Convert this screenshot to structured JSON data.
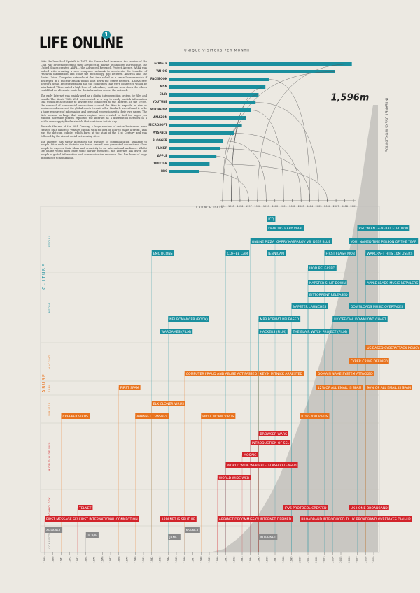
{
  "header": {
    "title": "LIFE ONLINE",
    "badge": "1"
  },
  "intro": [
    "With the launch of Sputnik in 1957, the Soviets had increased the tension of the Cold War by demonstrating their advances in missile technology. In response, the United States created ARPA – the Advanced Research Project Agency. ARPA was tasked with creating a new computer network to accelerate the transfer of research information and close the technology gap between America and the Soviet Union. Computer networks at that time relied on a central server which if destroyed in a nuclear attack would shut down the entire network. ARPA's new network would be decentralised and the computers that were connected would be interlinked. This created a high level of redundancy so if one went down the others could find an alternate route for the information across the network.",
    "The early Internet was mainly used as a digital interoperation system for files and emails. The World Wide Web was created as a way to easily publish information that would be accessible to anyone else connected to the Internet. In the 1990s, the removal of commercial restrictions caused the Web to explode in size as businesses discovered the global reach it could offer. Similarly users found it to be a huge resource of information and personal expression with their own pages. The Web became so large that search engines were created to find the pages you wanted. Software pirates exploited the Internet as a distribution network in a battle over copyrighted materials that continues to this day.",
    "Towards the end of the 20th Century, a large number of online businesses were created on a range of venture capital with no idea of how to make a profit. This was the dot-com bubble, which burst at the start of the 21st Century and was followed by the rise of social networking sites.",
    "The Internet has vastly increased the avenues of communication available to people. Sites such as Youtube are based around user generated content and allow people to express their ideas and creativity to an international audience. Whilst the online world does have some darker elements, the Internet has given the people a global information and communication resource that has been of huge importance to humankind."
  ],
  "visitors": {
    "title": "UNIQUE VISITORS PER MONTH",
    "axis_label": "LAUNCH DATE",
    "color": "#1a8f9e",
    "categories": [
      "GOOGLE",
      "YAHOO",
      "FACEBOOK",
      "MSN",
      "EBAY",
      "YOUTUBE",
      "WIKIPEDIA",
      "AMAZON",
      "MICROSOFT",
      "MYSPACE",
      "BLOGGER",
      "FLICKR",
      "APPLE",
      "TWITTER",
      "BBC"
    ],
    "values": [
      931,
      844,
      507,
      490,
      455,
      440,
      415,
      390,
      370,
      330,
      275,
      260,
      240,
      205,
      152
    ],
    "launch": [
      1998,
      1994,
      2004,
      1995,
      1995,
      2005,
      2001,
      1995,
      1994,
      2003,
      1999,
      2004,
      1996,
      2006,
      1997
    ],
    "xlim": [
      0,
      1000
    ],
    "launch_ticks": [
      1994,
      1995,
      1996,
      1997,
      1998,
      1999,
      2000,
      2001,
      2002,
      2003,
      2004,
      2005,
      2006,
      2007,
      2008,
      2009
    ]
  },
  "users": {
    "value": "1,596m",
    "label": "INTERNET USERS WORLDWIDE"
  },
  "timeline": {
    "groups": [
      {
        "name": "CULTURE",
        "color": "#1a8f9e"
      },
      {
        "name": "ABUSE",
        "color": "#e8731e"
      }
    ],
    "lanes": [
      {
        "name": "SOCIAL",
        "color": "#1a8f9e"
      },
      {
        "name": "MEDIA",
        "color": "#1a8f9e"
      },
      {
        "name": "HACKING",
        "color": "#e8731e"
      },
      {
        "name": "SPAM",
        "color": "#e8731e"
      },
      {
        "name": "VIRUSES",
        "color": "#e8731e"
      },
      {
        "name": "WORLD WIDE WEB",
        "color": "#d2232a"
      },
      {
        "name": "TECHNOLOGY",
        "color": "#d2232a"
      },
      {
        "name": "CONNECTIONS",
        "color": "#8a8a8a"
      }
    ],
    "years": [
      1969,
      1970,
      1971,
      1972,
      1973,
      1974,
      1975,
      1976,
      1977,
      1978,
      1979,
      1980,
      1981,
      1982,
      1983,
      1984,
      1985,
      1986,
      1987,
      1988,
      1989,
      1990,
      1991,
      1992,
      1993,
      1994,
      1995,
      1996,
      1997,
      1998,
      1999,
      2000,
      2001,
      2002,
      2003,
      2004,
      2005,
      2006,
      2007,
      2008,
      2009
    ],
    "events": [
      {
        "label": "ICQ",
        "year": 1996,
        "lane": 0
      },
      {
        "label": "DANCING BABY VIRAL",
        "year": 1996,
        "lane": 0
      },
      {
        "label": "ESTONIAN GENERAL ELECTION",
        "year": 2007,
        "lane": 0
      },
      {
        "label": "ONLINE PIZZA",
        "year": 1994,
        "lane": 0
      },
      {
        "label": "GARRY KASPAROV VS. DEEP BLUE",
        "year": 1997,
        "lane": 0
      },
      {
        "label": "YOU! NAMED TIME PERSON OF THE YEAR",
        "year": 2006,
        "lane": 0
      },
      {
        "label": "EMOTICONS",
        "year": 1982,
        "lane": 0
      },
      {
        "label": "COFFEE CAM",
        "year": 1991,
        "lane": 0
      },
      {
        "label": "JENNICAM",
        "year": 1996,
        "lane": 0
      },
      {
        "label": "FIRST FLASH MOB",
        "year": 2003,
        "lane": 0
      },
      {
        "label": "WARCRAFT HITS 10M USERS",
        "year": 2008,
        "lane": 0
      },
      {
        "label": "IPOD RELEASED",
        "year": 2001,
        "lane": 1
      },
      {
        "label": "NAPSTER SHUT DOWN",
        "year": 2001,
        "lane": 1
      },
      {
        "label": "APPLE LEADS MUSIC RETAILERS",
        "year": 2008,
        "lane": 1
      },
      {
        "label": "BITTORRENT RELEASED",
        "year": 2001,
        "lane": 1
      },
      {
        "label": "NAPSTER LAUNCHES",
        "year": 1999,
        "lane": 1
      },
      {
        "label": "DOWNLOADS MUSIC OVERTAKES",
        "year": 2006,
        "lane": 1
      },
      {
        "label": "NEUROMANCER (BOOK)",
        "year": 1984,
        "lane": 1
      },
      {
        "label": "MP3 FORMAT RELEASED",
        "year": 1995,
        "lane": 1
      },
      {
        "label": "UK OFFICIAL DOWNLOAD CHART",
        "year": 2004,
        "lane": 1
      },
      {
        "label": "WARGAMES (FILM)",
        "year": 1983,
        "lane": 1
      },
      {
        "label": "HACKERS (FILM)",
        "year": 1995,
        "lane": 1
      },
      {
        "label": "THE BLAIR WITCH PROJECT (FILM)",
        "year": 1999,
        "lane": 1
      },
      {
        "label": "US-BASED CYBERATTACK POLICY",
        "year": 2008,
        "lane": 2
      },
      {
        "label": "CYBER CRIME DEFINED",
        "year": 2006,
        "lane": 2
      },
      {
        "label": "COMPUTER FRAUD AND ABUSE ACT PASSED",
        "year": 1986,
        "lane": 2
      },
      {
        "label": "KEVIN MITNICK ARRESTED",
        "year": 1995,
        "lane": 2
      },
      {
        "label": "DOMAIN NAME SYSTEM ATTACKED",
        "year": 2002,
        "lane": 2
      },
      {
        "label": "FIRST SPAM",
        "year": 1978,
        "lane": 3
      },
      {
        "label": "12% OF ALL EMAIL IS SPAM",
        "year": 2002,
        "lane": 3
      },
      {
        "label": "90% OF ALL EMAIL IS SPAM",
        "year": 2008,
        "lane": 3
      },
      {
        "label": "ELK CLONER VIRUS",
        "year": 1982,
        "lane": 4
      },
      {
        "label": "CREEPER VIRUS",
        "year": 1971,
        "lane": 4
      },
      {
        "label": "ARPANET CRASHES",
        "year": 1980,
        "lane": 4
      },
      {
        "label": "FIRST WORM VIRUS",
        "year": 1988,
        "lane": 4
      },
      {
        "label": "ILOVEYOU VIRUS",
        "year": 2000,
        "lane": 4
      },
      {
        "label": "BROWSER WARS",
        "year": 1995,
        "lane": 5
      },
      {
        "label": "INTRODUCTION OF SSL",
        "year": 1994,
        "lane": 5
      },
      {
        "label": "MOSAIC",
        "year": 1993,
        "lane": 5
      },
      {
        "label": "WORLD WIDE WEB RELEASED",
        "year": 1991,
        "lane": 5
      },
      {
        "label": "FLASH RELEASED",
        "year": 1996,
        "lane": 5
      },
      {
        "label": "WORLD WIDE WEB",
        "year": 1990,
        "lane": 5
      },
      {
        "label": "TELNET",
        "year": 1973,
        "lane": 6
      },
      {
        "label": "IPV6 PROTOCOL CREATED",
        "year": 1998,
        "lane": 6
      },
      {
        "label": "UK HOME BROADBAND",
        "year": 2006,
        "lane": 6
      },
      {
        "label": "FIRST MESSAGE SENT",
        "year": 1969,
        "lane": 6
      },
      {
        "label": "FIRST INTERNATIONAL CONNECTION",
        "year": 1973,
        "lane": 6
      },
      {
        "label": "ARPANET IS SPLIT UP",
        "year": 1983,
        "lane": 6
      },
      {
        "label": "ARPANET DECOMMISSIONED",
        "year": 1990,
        "lane": 6
      },
      {
        "label": "INTERNET DEFINED",
        "year": 1995,
        "lane": 6
      },
      {
        "label": "BROADBAND INTRODUCED TO THE UK",
        "year": 2000,
        "lane": 6
      },
      {
        "label": "UK BROADBAND OVERTAKES DIAL-UP",
        "year": 2006,
        "lane": 6
      },
      {
        "label": "ARPANET",
        "year": 1969,
        "lane": 7
      },
      {
        "label": "TCP/IP",
        "year": 1974,
        "lane": 7
      },
      {
        "label": "NSFNET",
        "year": 1986,
        "lane": 7
      },
      {
        "label": "JANET",
        "year": 1984,
        "lane": 7
      },
      {
        "label": "INTERNET",
        "year": 1995,
        "lane": 7
      }
    ]
  }
}
